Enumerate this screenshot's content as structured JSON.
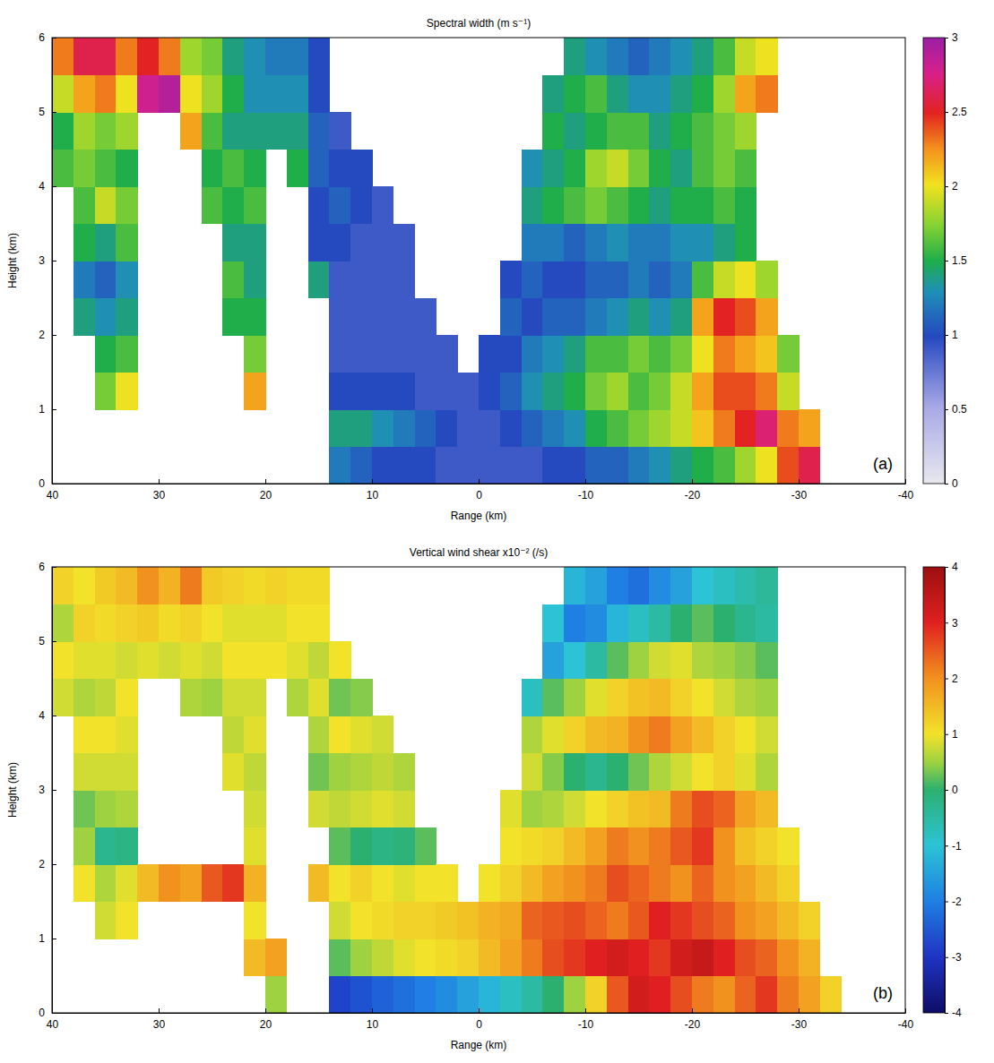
{
  "chart_data": [
    {
      "type": "heatmap",
      "title": "Spectral width (m s⁻¹)",
      "x_label": "Range (km)",
      "y_label": "Height (km)",
      "label": "(a)",
      "xlim": [
        40,
        -40
      ],
      "xticks": [
        40,
        30,
        20,
        10,
        0,
        -10,
        -20,
        -30,
        -40
      ],
      "ylim": [
        0,
        6
      ],
      "yticks": [
        0,
        1,
        2,
        3,
        4,
        5,
        6
      ],
      "x_bins": [
        40,
        38,
        36,
        34,
        32,
        30,
        28,
        26,
        24,
        22,
        20,
        18,
        16,
        14,
        12,
        10,
        8,
        6,
        4,
        2,
        0,
        -2,
        -4,
        -6,
        -8,
        -10,
        -12,
        -14,
        -16,
        -18,
        -20,
        -22,
        -24,
        -26,
        -28,
        -30,
        -32,
        -34,
        -36,
        -38,
        -40
      ],
      "y_bins": [
        0,
        0.5,
        1,
        1.5,
        2,
        2.5,
        3,
        3.5,
        4,
        4.5,
        5,
        5.5,
        6
      ],
      "cells": [
        [
          null,
          null,
          null,
          null,
          null,
          null,
          null,
          null,
          1.6,
          1.5,
          1.9,
          2.3
        ],
        [
          null,
          null,
          null,
          null,
          1.4,
          1.2,
          1.5,
          1.6,
          1.7,
          1.8,
          2.2,
          2.6
        ],
        [
          null,
          null,
          1.7,
          1.5,
          1.3,
          1.1,
          1.4,
          1.9,
          1.6,
          1.7,
          2.3,
          2.6
        ],
        [
          null,
          null,
          2.0,
          1.6,
          1.4,
          1.3,
          1.6,
          1.7,
          1.5,
          1.8,
          2.0,
          2.3
        ],
        [
          null,
          null,
          null,
          null,
          null,
          null,
          null,
          null,
          null,
          null,
          2.8,
          2.5
        ],
        [
          null,
          null,
          null,
          null,
          null,
          null,
          null,
          null,
          null,
          null,
          2.9,
          2.3
        ],
        [
          null,
          null,
          null,
          null,
          null,
          null,
          null,
          null,
          null,
          2.2,
          2.0,
          1.8
        ],
        [
          null,
          null,
          null,
          null,
          null,
          null,
          null,
          1.6,
          1.5,
          1.6,
          1.8,
          1.7
        ],
        [
          null,
          null,
          null,
          null,
          1.5,
          1.6,
          1.4,
          1.5,
          1.6,
          1.4,
          1.5,
          1.4
        ],
        [
          null,
          null,
          2.2,
          1.7,
          1.5,
          1.4,
          1.4,
          1.6,
          1.5,
          1.4,
          1.3,
          1.3
        ],
        [
          null,
          null,
          null,
          null,
          null,
          null,
          null,
          null,
          null,
          1.4,
          1.3,
          1.2
        ],
        [
          null,
          null,
          null,
          null,
          null,
          null,
          null,
          null,
          1.5,
          1.4,
          1.3,
          1.2
        ],
        [
          null,
          null,
          null,
          null,
          null,
          1.4,
          1.0,
          1.0,
          1.1,
          1.1,
          1.0,
          1.0
        ],
        [
          1.2,
          1.4,
          1.0,
          0.9,
          0.9,
          0.9,
          1.0,
          1.1,
          1.0,
          0.9,
          null,
          null
        ],
        [
          1.1,
          1.4,
          1.0,
          0.9,
          0.9,
          0.9,
          0.9,
          1.0,
          1.0,
          null,
          null,
          null
        ],
        [
          1.0,
          1.3,
          1.0,
          0.9,
          0.9,
          0.9,
          0.9,
          0.9,
          null,
          null,
          null,
          null
        ],
        [
          1.0,
          1.2,
          1.0,
          0.9,
          0.9,
          0.9,
          0.9,
          null,
          null,
          null,
          null,
          null
        ],
        [
          1.0,
          1.1,
          0.9,
          0.9,
          0.9,
          null,
          null,
          null,
          null,
          null,
          null,
          null
        ],
        [
          0.9,
          1.0,
          0.9,
          0.9,
          null,
          null,
          null,
          null,
          null,
          null,
          null,
          null
        ],
        [
          0.9,
          0.9,
          0.9,
          null,
          null,
          null,
          null,
          null,
          null,
          null,
          null,
          null
        ],
        [
          0.9,
          0.9,
          1.0,
          1.0,
          null,
          null,
          null,
          null,
          null,
          null,
          null,
          null
        ],
        [
          0.9,
          1.0,
          1.1,
          1.0,
          1.1,
          1.0,
          null,
          null,
          null,
          null,
          null,
          null
        ],
        [
          0.9,
          1.1,
          1.3,
          1.2,
          1.0,
          1.1,
          1.2,
          1.4,
          1.3,
          null,
          null,
          null
        ],
        [
          1.0,
          1.2,
          1.4,
          1.3,
          1.1,
          1.0,
          1.2,
          1.5,
          1.4,
          1.5,
          1.4,
          null
        ],
        [
          1.0,
          1.3,
          1.5,
          1.4,
          1.1,
          1.0,
          1.1,
          1.6,
          1.5,
          1.4,
          1.5,
          1.4
        ],
        [
          1.1,
          1.5,
          1.7,
          1.6,
          1.2,
          1.1,
          1.2,
          1.7,
          1.8,
          1.5,
          1.6,
          1.3
        ],
        [
          1.1,
          1.6,
          1.8,
          1.6,
          1.3,
          1.1,
          1.3,
          1.6,
          1.9,
          1.6,
          1.4,
          1.2
        ],
        [
          1.2,
          1.7,
          1.6,
          1.7,
          1.4,
          1.2,
          1.2,
          1.5,
          1.7,
          1.6,
          1.3,
          1.1
        ],
        [
          1.3,
          1.8,
          1.7,
          1.6,
          1.3,
          1.1,
          1.2,
          1.4,
          1.5,
          1.4,
          1.3,
          1.2
        ],
        [
          1.4,
          1.9,
          1.9,
          1.7,
          1.4,
          1.2,
          1.3,
          1.5,
          1.4,
          1.5,
          1.4,
          1.3
        ],
        [
          1.5,
          2.1,
          2.2,
          2.0,
          2.2,
          1.6,
          1.3,
          1.5,
          1.6,
          1.6,
          1.5,
          1.4
        ],
        [
          1.6,
          2.3,
          2.4,
          2.3,
          2.5,
          1.9,
          1.4,
          1.6,
          1.7,
          1.7,
          1.8,
          1.6
        ],
        [
          1.8,
          2.5,
          2.4,
          2.2,
          2.4,
          2.0,
          1.5,
          1.5,
          1.6,
          1.8,
          2.2,
          1.9
        ],
        [
          2.0,
          2.7,
          2.3,
          2.1,
          2.2,
          1.8,
          null,
          null,
          null,
          null,
          2.3,
          2.0
        ],
        [
          2.4,
          2.3,
          1.9,
          1.7,
          null,
          null,
          null,
          null,
          null,
          null,
          null,
          null
        ],
        [
          2.6,
          2.2,
          null,
          null,
          null,
          null,
          null,
          null,
          null,
          null,
          null,
          null
        ],
        [
          null,
          null,
          null,
          null,
          null,
          null,
          null,
          null,
          null,
          null,
          null,
          null
        ],
        [
          null,
          null,
          null,
          null,
          null,
          null,
          null,
          null,
          null,
          null,
          null,
          null
        ],
        [
          null,
          null,
          null,
          null,
          null,
          null,
          null,
          null,
          null,
          null,
          null,
          null
        ],
        [
          null,
          null,
          null,
          null,
          null,
          null,
          null,
          null,
          null,
          null,
          null,
          null
        ]
      ],
      "colorbar_range": [
        0,
        3
      ],
      "colorbar_ticks": [
        0,
        0.5,
        1,
        1.5,
        2,
        2.5,
        3
      ]
    },
    {
      "type": "heatmap",
      "title": "Vertical wind shear x10⁻² (/s)",
      "x_label": "Range (km)",
      "y_label": "Height (km)",
      "label": "(b)",
      "xlim": [
        40,
        -40
      ],
      "xticks": [
        40,
        30,
        20,
        10,
        0,
        -10,
        -20,
        -30,
        -40
      ],
      "ylim": [
        0,
        6
      ],
      "yticks": [
        0,
        1,
        2,
        3,
        4,
        5,
        6
      ],
      "x_bins": [
        40,
        38,
        36,
        34,
        32,
        30,
        28,
        26,
        24,
        22,
        20,
        18,
        16,
        14,
        12,
        10,
        8,
        6,
        4,
        2,
        0,
        -2,
        -4,
        -6,
        -8,
        -10,
        -12,
        -14,
        -16,
        -18,
        -20,
        -22,
        -24,
        -26,
        -28,
        -30,
        -32,
        -34,
        -36,
        -38,
        -40
      ],
      "y_bins": [
        0,
        0.5,
        1,
        1.5,
        2,
        2.5,
        3,
        3.5,
        4,
        4.5,
        5,
        5.5,
        6
      ],
      "cells": [
        [
          null,
          null,
          null,
          null,
          null,
          null,
          null,
          null,
          0.8,
          1.0,
          0.6,
          1.2
        ],
        [
          null,
          null,
          null,
          1.0,
          0.5,
          0.3,
          0.8,
          1.0,
          0.6,
          0.9,
          1.2,
          1.0
        ],
        [
          null,
          null,
          0.8,
          0.6,
          -0.3,
          0.5,
          0.8,
          1.0,
          0.7,
          0.9,
          1.1,
          1.3
        ],
        [
          null,
          null,
          1.0,
          0.9,
          -0.2,
          0.6,
          0.8,
          0.9,
          1.0,
          0.8,
          1.2,
          1.5
        ],
        [
          null,
          null,
          null,
          1.5,
          null,
          null,
          null,
          null,
          null,
          0.9,
          1.3,
          2.0
        ],
        [
          null,
          null,
          null,
          2.0,
          null,
          null,
          null,
          null,
          null,
          0.8,
          1.1,
          1.6
        ],
        [
          null,
          null,
          null,
          1.8,
          null,
          null,
          null,
          null,
          0.6,
          0.9,
          1.2,
          2.2
        ],
        [
          null,
          null,
          null,
          2.5,
          null,
          null,
          null,
          null,
          0.5,
          0.8,
          1.0,
          1.3
        ],
        [
          null,
          null,
          null,
          2.8,
          null,
          null,
          0.9,
          0.7,
          0.8,
          1.0,
          0.9,
          1.2
        ],
        [
          null,
          1.5,
          1.0,
          1.6,
          0.9,
          0.8,
          0.7,
          0.9,
          0.8,
          1.0,
          0.9,
          1.1
        ],
        [
          0.5,
          1.8,
          null,
          null,
          null,
          null,
          null,
          null,
          null,
          1.0,
          0.9,
          1.2
        ],
        [
          null,
          null,
          null,
          null,
          null,
          null,
          null,
          null,
          0.6,
          0.9,
          1.0,
          1.1
        ],
        [
          null,
          null,
          null,
          1.5,
          null,
          0.8,
          0.3,
          0.6,
          0.9,
          0.7,
          1.0,
          1.1
        ],
        [
          -2.8,
          0.2,
          0.8,
          1.0,
          0.2,
          0.7,
          0.5,
          1.0,
          0.3,
          1.0,
          null,
          null
        ],
        [
          -2.6,
          0.5,
          1.0,
          1.2,
          0,
          0.8,
          0.6,
          0.9,
          0.4,
          null,
          null,
          null
        ],
        [
          -2.4,
          0.7,
          1.1,
          1.0,
          -0.2,
          0.9,
          0.7,
          0.8,
          null,
          null,
          null,
          null
        ],
        [
          -2.2,
          0.9,
          1.2,
          0.9,
          -0.1,
          0.8,
          0.6,
          null,
          null,
          null,
          null,
          null
        ],
        [
          -2.0,
          1.0,
          1.2,
          1.0,
          0.2,
          null,
          null,
          null,
          null,
          null,
          null,
          null
        ],
        [
          -1.8,
          1.1,
          1.3,
          1.0,
          null,
          null,
          null,
          null,
          null,
          null,
          null,
          null
        ],
        [
          -1.5,
          1.2,
          1.4,
          null,
          null,
          null,
          null,
          null,
          null,
          null,
          null,
          null
        ],
        [
          -1.2,
          1.5,
          1.6,
          1.0,
          null,
          null,
          null,
          null,
          null,
          null,
          null,
          null
        ],
        [
          -0.8,
          1.8,
          1.7,
          1.2,
          1.0,
          0.9,
          null,
          null,
          null,
          null,
          null,
          null
        ],
        [
          -0.5,
          2.2,
          2.4,
          1.5,
          1.1,
          0.5,
          0.8,
          0.6,
          -0.8,
          null,
          null,
          null
        ],
        [
          0,
          2.6,
          2.5,
          1.8,
          1.2,
          0.6,
          0.4,
          0.9,
          0.2,
          -1.5,
          -1.0,
          null
        ],
        [
          0.5,
          2.8,
          2.6,
          2.0,
          1.5,
          0.8,
          0,
          1.2,
          0.5,
          -1.0,
          -2.0,
          -1.2
        ],
        [
          1.2,
          3.0,
          2.4,
          2.2,
          1.8,
          1.0,
          -0.3,
          1.5,
          0.9,
          -0.5,
          -1.8,
          -1.5
        ],
        [
          2.5,
          3.2,
          2.2,
          2.6,
          2.2,
          1.2,
          0,
          1.6,
          1.2,
          0.2,
          -1.2,
          -2.0
        ],
        [
          3.2,
          3.0,
          2.5,
          2.4,
          2.0,
          1.4,
          0.3,
          2.0,
          1.4,
          0.5,
          -0.8,
          -2.2
        ],
        [
          3.0,
          2.8,
          3.0,
          2.2,
          2.2,
          1.5,
          0.6,
          2.2,
          1.5,
          0.8,
          -0.5,
          -1.8
        ],
        [
          2.6,
          3.2,
          2.8,
          2.0,
          2.5,
          2.2,
          0.8,
          1.8,
          1.2,
          0.9,
          0,
          -1.5
        ],
        [
          2.2,
          3.4,
          2.6,
          2.4,
          2.8,
          2.6,
          1.0,
          1.5,
          1.0,
          0.6,
          0.2,
          -1.0
        ],
        [
          2.0,
          3.0,
          2.4,
          2.0,
          2.0,
          2.4,
          1.2,
          1.2,
          0.8,
          0.5,
          0,
          -0.8
        ],
        [
          2.4,
          2.6,
          2.0,
          1.8,
          1.4,
          1.8,
          0.9,
          1.0,
          0.6,
          0.4,
          -0.3,
          -0.6
        ],
        [
          2.8,
          2.4,
          1.8,
          1.5,
          1.2,
          1.5,
          0.6,
          0.8,
          0.5,
          0.2,
          -0.5,
          -0.4
        ],
        [
          2.2,
          2.0,
          1.5,
          1.2,
          1.0,
          null,
          null,
          null,
          null,
          null,
          null,
          null
        ],
        [
          1.8,
          1.6,
          1.2,
          null,
          null,
          null,
          null,
          null,
          null,
          null,
          null,
          null
        ],
        [
          1.2,
          null,
          null,
          null,
          null,
          null,
          null,
          null,
          null,
          null,
          null,
          null
        ],
        [
          null,
          null,
          null,
          null,
          null,
          null,
          null,
          null,
          null,
          null,
          null,
          null
        ],
        [
          null,
          null,
          null,
          null,
          null,
          null,
          null,
          null,
          null,
          null,
          null,
          null
        ],
        [
          null,
          null,
          null,
          null,
          null,
          null,
          null,
          null,
          null,
          null,
          null,
          null
        ]
      ],
      "colorbar_range": [
        -4,
        4
      ],
      "colorbar_ticks": [
        -4,
        -3,
        -2,
        -1,
        0,
        1,
        2,
        3,
        4
      ]
    }
  ]
}
